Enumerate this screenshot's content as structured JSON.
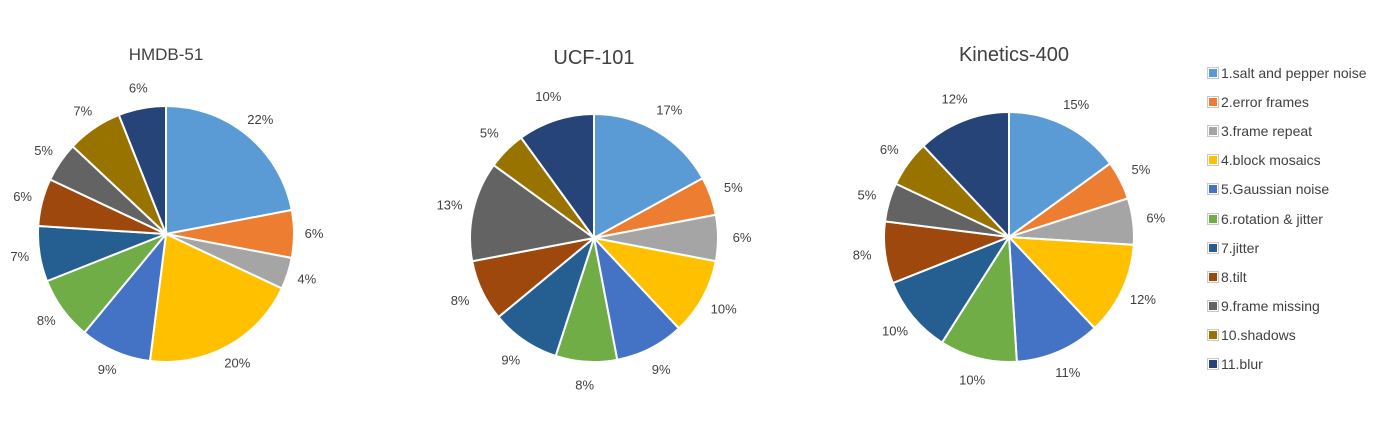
{
  "legend": {
    "items": [
      {
        "label": "1.salt and pepper noise",
        "color": "#5B9BD5"
      },
      {
        "label": "2.error frames",
        "color": "#ED7D31"
      },
      {
        "label": "3.frame repeat",
        "color": "#A5A5A5"
      },
      {
        "label": "4.block mosaics",
        "color": "#FFC000"
      },
      {
        "label": "5.Gaussian noise",
        "color": "#4472C4"
      },
      {
        "label": "6.rotation & jitter",
        "color": "#70AD47"
      },
      {
        "label": "7.jitter",
        "color": "#255E91"
      },
      {
        "label": "8.tilt",
        "color": "#9E480E"
      },
      {
        "label": "9.frame missing",
        "color": "#636363"
      },
      {
        "label": "10.shadows",
        "color": "#997300"
      },
      {
        "label": "11.blur",
        "color": "#264478"
      }
    ]
  },
  "chart_data": [
    {
      "type": "pie",
      "title": "HMDB-51",
      "categories": [
        "1.salt and pepper noise",
        "2.error frames",
        "3.frame repeat",
        "4.block mosaics",
        "5.Gaussian noise",
        "6.rotation & jitter",
        "7.jitter",
        "8.tilt",
        "9.frame missing",
        "10.shadows",
        "11.blur"
      ],
      "values": [
        22,
        6,
        4,
        20,
        9,
        8,
        7,
        6,
        5,
        7,
        6
      ],
      "labels": [
        "22%",
        "6%",
        "4%",
        "20%",
        "9%",
        "8%",
        "7%",
        "6%",
        "5%",
        "7%",
        "6%"
      ]
    },
    {
      "type": "pie",
      "title": "UCF-101",
      "categories": [
        "1.salt and pepper noise",
        "2.error frames",
        "3.frame repeat",
        "4.block mosaics",
        "5.Gaussian noise",
        "6.rotation & jitter",
        "7.jitter",
        "8.tilt",
        "9.frame missing",
        "10.shadows",
        "11.blur"
      ],
      "values": [
        17,
        5,
        6,
        10,
        9,
        8,
        9,
        8,
        13,
        5,
        10
      ],
      "labels": [
        "17%",
        "5%",
        "6%",
        "10%",
        "9%",
        "8%",
        "9%",
        "8%",
        "13%",
        "5%",
        "10%"
      ]
    },
    {
      "type": "pie",
      "title": "Kinetics-400",
      "categories": [
        "1.salt and pepper noise",
        "2.error frames",
        "3.frame repeat",
        "4.block mosaics",
        "5.Gaussian noise",
        "6.rotation & jitter",
        "7.jitter",
        "8.tilt",
        "9.frame missing",
        "10.shadows",
        "11.blur"
      ],
      "values": [
        15,
        5,
        6,
        12,
        11,
        10,
        10,
        8,
        5,
        6,
        12
      ],
      "labels": [
        "15%",
        "5%",
        "6%",
        "12%",
        "11%",
        "10%",
        "10%",
        "8%",
        "5%",
        "6%",
        "12%"
      ]
    }
  ]
}
